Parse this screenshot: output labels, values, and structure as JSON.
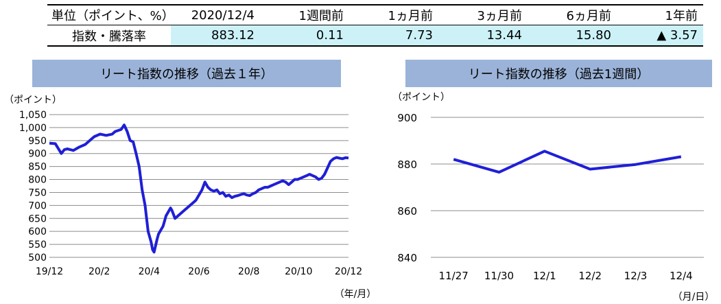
{
  "table": {
    "headers": [
      "単位（ポイント、%）",
      "2020/12/4",
      "1週間前",
      "1ヵ月前",
      "3ヵ月前",
      "6ヵ月前",
      "1年前"
    ],
    "row_label": "指数・騰落率",
    "values": [
      "883.12",
      "0.11",
      "7.73",
      "13.44",
      "15.80",
      "▲ 3.57"
    ]
  },
  "chart_data": [
    {
      "type": "line",
      "title": "リート指数の推移（過去１年）",
      "ylabel": "（ポイント）",
      "xlabel": "（年/月）",
      "ylim": [
        500,
        1050
      ],
      "yticks": [
        "500",
        "550",
        "600",
        "650",
        "700",
        "750",
        "800",
        "850",
        "900",
        "950",
        "1,000",
        "1,050"
      ],
      "xticks": [
        "19/12",
        "20/2",
        "20/4",
        "20/6",
        "20/8",
        "20/10",
        "20/12"
      ],
      "grid": true,
      "color": "#1f1fd6",
      "x": [
        0,
        0.02,
        0.04,
        0.05,
        0.06,
        0.08,
        0.1,
        0.12,
        0.14,
        0.15,
        0.17,
        0.19,
        0.21,
        0.22,
        0.24,
        0.25,
        0.26,
        0.27,
        0.28,
        0.29,
        0.3,
        0.31,
        0.32,
        0.33,
        0.34,
        0.345,
        0.35,
        0.355,
        0.36,
        0.365,
        0.37,
        0.375,
        0.38,
        0.385,
        0.39,
        0.395,
        0.4,
        0.405,
        0.41,
        0.42,
        0.43,
        0.44,
        0.45,
        0.46,
        0.47,
        0.48,
        0.49,
        0.5,
        0.51,
        0.52,
        0.53,
        0.54,
        0.55,
        0.56,
        0.57,
        0.58,
        0.59,
        0.6,
        0.61,
        0.62,
        0.63,
        0.64,
        0.65,
        0.66,
        0.67,
        0.68,
        0.69,
        0.7,
        0.71,
        0.72,
        0.73,
        0.74,
        0.75,
        0.76,
        0.77,
        0.78,
        0.79,
        0.8,
        0.81,
        0.82,
        0.83,
        0.84,
        0.85,
        0.86,
        0.87,
        0.88,
        0.89,
        0.9,
        0.91,
        0.92,
        0.93,
        0.94,
        0.95,
        0.96,
        0.97,
        0.98,
        0.99,
        1.0
      ],
      "values": [
        940,
        938,
        900,
        915,
        918,
        912,
        925,
        935,
        955,
        965,
        975,
        970,
        975,
        985,
        993,
        1010,
        985,
        950,
        945,
        900,
        850,
        760,
        700,
        600,
        560,
        530,
        520,
        545,
        570,
        590,
        600,
        610,
        620,
        640,
        660,
        670,
        680,
        690,
        680,
        650,
        660,
        670,
        680,
        690,
        700,
        710,
        720,
        740,
        760,
        790,
        770,
        760,
        755,
        760,
        745,
        750,
        735,
        740,
        730,
        735,
        738,
        742,
        745,
        740,
        738,
        745,
        750,
        760,
        765,
        770,
        770,
        775,
        780,
        785,
        790,
        795,
        790,
        780,
        790,
        800,
        800,
        805,
        810,
        815,
        820,
        815,
        810,
        800,
        805,
        820,
        845,
        870,
        880,
        885,
        882,
        880,
        884,
        883
      ]
    },
    {
      "type": "line",
      "title": "リート指数の推移（過去1週間）",
      "ylabel": "（ポイント）",
      "xlabel": "（月/日）",
      "ylim": [
        840,
        900
      ],
      "yticks": [
        "840",
        "860",
        "880",
        "900"
      ],
      "categories": [
        "11/27",
        "11/30",
        "12/1",
        "12/2",
        "12/3",
        "12/4"
      ],
      "values": [
        882.0,
        876.5,
        885.5,
        877.8,
        879.8,
        883.12
      ],
      "grid": true,
      "color": "#1f1fd6"
    }
  ]
}
